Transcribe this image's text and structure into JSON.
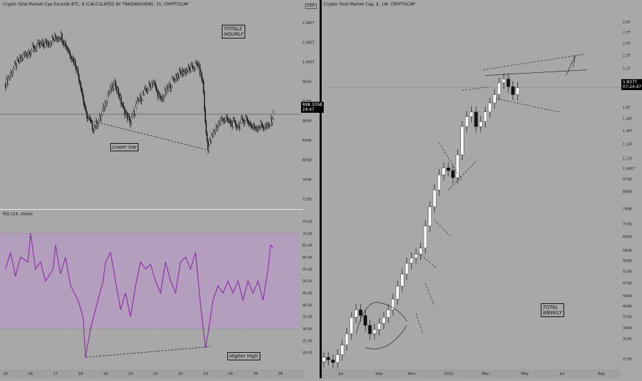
{
  "charts": {
    "left_title": "Crypto Total Market Cap Exclude BTC, $ (CALCULATED BY TRADINGVIEW), 1h, CRYPTOCAP",
    "right_title": "Crypto Total Market Cap, $, 1W, CRYPTOCAP",
    "rsi_title": "RSI (14, close)",
    "left_unit": "USD",
    "left_price_label": "898.335B\n24:47",
    "right_price_label": "1.837T\n07:24:47",
    "annotations": {
      "total2": "TOTAL2\nHOURLY",
      "lower_low": "Lower low",
      "higher_high": "Higher High",
      "total": "TOTAL\nWEEKLY"
    }
  },
  "chart_data": [
    {
      "type": "candlestick",
      "name": "TOTAL2 hourly",
      "x": [
        "15",
        "16",
        "17",
        "18",
        "19",
        "20",
        "21",
        "22",
        "23",
        "24",
        "25",
        "26"
      ],
      "y_ticks": [
        "1.085T",
        "1.045T",
        "1.005T",
        "965B",
        "925B",
        "885B",
        "845B",
        "805B",
        "765B",
        "725B"
      ],
      "ylim": [
        710,
        1110
      ],
      "close_path": [
        [
          15,
          960
        ],
        [
          15.3,
          990
        ],
        [
          15.6,
          1010
        ],
        [
          15.9,
          1025
        ],
        [
          16.2,
          1035
        ],
        [
          16.5,
          1040
        ],
        [
          16.9,
          1050
        ],
        [
          17.2,
          1060
        ],
        [
          17.5,
          1030
        ],
        [
          17.8,
          1000
        ],
        [
          18.0,
          960
        ],
        [
          18.2,
          900
        ],
        [
          18.5,
          870
        ],
        [
          18.8,
          890
        ],
        [
          19.1,
          940
        ],
        [
          19.4,
          960
        ],
        [
          19.7,
          910
        ],
        [
          20.0,
          880
        ],
        [
          20.3,
          925
        ],
        [
          20.6,
          945
        ],
        [
          20.9,
          965
        ],
        [
          21.2,
          925
        ],
        [
          21.5,
          950
        ],
        [
          21.8,
          975
        ],
        [
          22.1,
          985
        ],
        [
          22.4,
          990
        ],
        [
          22.7,
          1000
        ],
        [
          22.9,
          960
        ],
        [
          23.0,
          870
        ],
        [
          23.1,
          830
        ],
        [
          23.4,
          870
        ],
        [
          23.7,
          890
        ],
        [
          24.0,
          880
        ],
        [
          24.3,
          875
        ],
        [
          24.6,
          890
        ],
        [
          24.9,
          870
        ],
        [
          25.2,
          875
        ],
        [
          25.5,
          870
        ],
        [
          25.7,
          895
        ]
      ],
      "last_price": "898.335B"
    },
    {
      "type": "line",
      "name": "RSI (14, close)",
      "x": [
        "15",
        "16",
        "17",
        "18",
        "19",
        "20",
        "21",
        "22",
        "23",
        "24",
        "25",
        "26"
      ],
      "y_ticks": [
        75,
        70,
        65,
        60,
        55,
        50,
        45,
        40,
        35,
        30,
        25,
        20
      ],
      "ylim": [
        15,
        77
      ],
      "band": [
        30,
        70
      ],
      "points": [
        [
          15,
          55
        ],
        [
          15.2,
          62
        ],
        [
          15.4,
          52
        ],
        [
          15.6,
          60
        ],
        [
          15.9,
          58
        ],
        [
          16.0,
          70
        ],
        [
          16.2,
          55
        ],
        [
          16.4,
          58
        ],
        [
          16.6,
          50
        ],
        [
          16.9,
          55
        ],
        [
          17.0,
          65
        ],
        [
          17.2,
          53
        ],
        [
          17.4,
          60
        ],
        [
          17.6,
          48
        ],
        [
          17.9,
          42
        ],
        [
          18.1,
          35
        ],
        [
          18.2,
          18
        ],
        [
          18.4,
          30
        ],
        [
          18.6,
          38
        ],
        [
          18.9,
          50
        ],
        [
          19.0,
          58
        ],
        [
          19.2,
          62
        ],
        [
          19.4,
          50
        ],
        [
          19.6,
          38
        ],
        [
          19.8,
          45
        ],
        [
          20.0,
          35
        ],
        [
          20.2,
          48
        ],
        [
          20.4,
          58
        ],
        [
          20.6,
          55
        ],
        [
          20.8,
          57
        ],
        [
          21.0,
          50
        ],
        [
          21.2,
          45
        ],
        [
          21.4,
          58
        ],
        [
          21.6,
          50
        ],
        [
          21.8,
          45
        ],
        [
          22.0,
          58
        ],
        [
          22.2,
          60
        ],
        [
          22.4,
          55
        ],
        [
          22.6,
          62
        ],
        [
          22.8,
          40
        ],
        [
          23.0,
          22
        ],
        [
          23.1,
          28
        ],
        [
          23.3,
          42
        ],
        [
          23.5,
          48
        ],
        [
          23.7,
          45
        ],
        [
          23.9,
          50
        ],
        [
          24.1,
          45
        ],
        [
          24.3,
          50
        ],
        [
          24.5,
          42
        ],
        [
          24.7,
          50
        ],
        [
          24.9,
          45
        ],
        [
          25.1,
          50
        ],
        [
          25.3,
          42
        ],
        [
          25.5,
          55
        ],
        [
          25.6,
          65
        ],
        [
          25.7,
          64
        ]
      ]
    },
    {
      "type": "candlestick",
      "name": "TOTAL weekly",
      "x": [
        "Jul",
        "Sep",
        "Nov",
        "2021",
        "Mar",
        "May",
        "Jul",
        "Sep"
      ],
      "y_ticks": [
        "2.9T",
        "2.7T",
        "2.5T",
        "2.3T",
        "2.1T",
        "1.9T",
        "1.6T",
        "1.48T",
        "1.36T",
        "1.24T",
        "1.12T",
        "1.045T",
        "970B",
        "890B",
        "790B",
        "710B",
        "650B",
        "590B",
        "550B",
        "510B",
        "470B",
        "430B",
        "400B",
        "372B",
        "344B",
        "319B",
        "277B"
      ],
      "ylim": [
        260,
        3150
      ],
      "log_scale": true,
      "closes": [
        280,
        275,
        270,
        285,
        305,
        330,
        370,
        390,
        375,
        350,
        330,
        340,
        355,
        370,
        390,
        420,
        460,
        500,
        540,
        560,
        575,
        600,
        700,
        800,
        900,
        1000,
        1050,
        1030,
        980,
        1150,
        1400,
        1500,
        1550,
        1400,
        1450,
        1550,
        1650,
        1750,
        1900,
        1950,
        1850,
        1750,
        1837
      ],
      "last_price": "1.837T"
    }
  ]
}
